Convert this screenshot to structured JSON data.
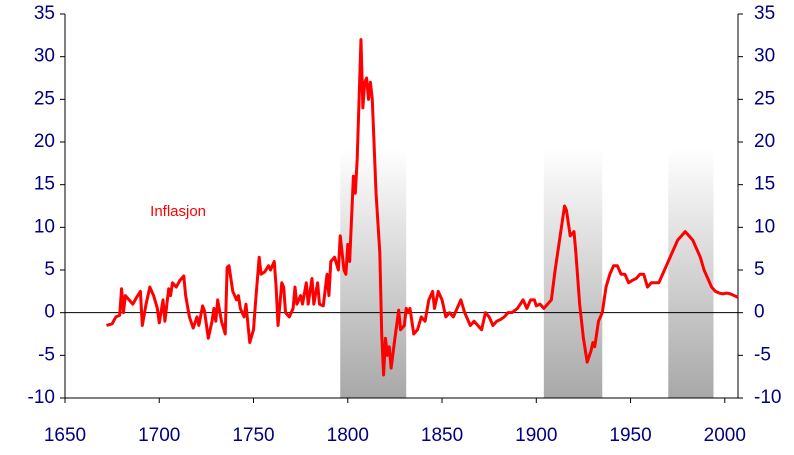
{
  "chart_data": {
    "type": "line",
    "xlim": [
      1650,
      2007
    ],
    "xticks": [
      1650,
      1700,
      1750,
      1800,
      1850,
      1900,
      1950,
      2000
    ],
    "ylim": [
      -10,
      35
    ],
    "yticks": [
      -10,
      -5,
      0,
      5,
      10,
      15,
      20,
      25,
      30,
      35
    ],
    "y2lim": [
      -10,
      35
    ],
    "y2ticks": [
      -10,
      -5,
      0,
      5,
      10,
      15,
      20,
      25,
      30,
      35
    ],
    "axis_color": "#000080",
    "shaded_periods": [
      {
        "start": 1796,
        "end": 1831
      },
      {
        "start": 1904,
        "end": 1935
      },
      {
        "start": 1970,
        "end": 1994
      }
    ],
    "annotation_position": {
      "x": 1710,
      "y": 11.8
    },
    "x": [
      1672,
      1675,
      1677,
      1679,
      1680,
      1681,
      1682,
      1684,
      1686,
      1688,
      1690,
      1691,
      1693,
      1695,
      1697,
      1699,
      1700,
      1702,
      1703,
      1705,
      1706,
      1707,
      1709,
      1711,
      1713,
      1714,
      1716,
      1718,
      1720,
      1721,
      1723,
      1724,
      1726,
      1728,
      1729,
      1730,
      1731,
      1733,
      1735,
      1736,
      1737,
      1739,
      1741,
      1742,
      1743,
      1745,
      1746,
      1748,
      1750,
      1751,
      1753,
      1754,
      1756,
      1758,
      1759,
      1761,
      1762,
      1763,
      1765,
      1766,
      1767,
      1769,
      1771,
      1772,
      1773,
      1775,
      1776,
      1778,
      1779,
      1781,
      1782,
      1784,
      1785,
      1787,
      1789,
      1790,
      1791,
      1793,
      1795,
      1796,
      1797,
      1798,
      1799,
      1800,
      1801,
      1803,
      1804,
      1805,
      1806,
      1807,
      1808,
      1809,
      1810,
      1811,
      1812,
      1813,
      1815,
      1817,
      1818,
      1819,
      1820,
      1821,
      1822,
      1823,
      1825,
      1827,
      1828,
      1830,
      1831,
      1832,
      1833,
      1835,
      1837,
      1839,
      1841,
      1843,
      1845,
      1846,
      1848,
      1850,
      1852,
      1854,
      1856,
      1858,
      1860,
      1862,
      1864,
      1865,
      1867,
      1869,
      1871,
      1873,
      1875,
      1877,
      1879,
      1881,
      1883,
      1885,
      1887,
      1890,
      1893,
      1895,
      1897,
      1899,
      1900,
      1902,
      1904,
      1906,
      1908,
      1910,
      1912,
      1914,
      1915,
      1916,
      1918,
      1920,
      1921,
      1923,
      1925,
      1927,
      1929,
      1930,
      1931,
      1933,
      1935,
      1937,
      1939,
      1941,
      1943,
      1945,
      1947,
      1949,
      1951,
      1953,
      1955,
      1957,
      1959,
      1961,
      1963,
      1965,
      1967,
      1969,
      1971,
      1973,
      1975,
      1977,
      1979,
      1981,
      1983,
      1985,
      1987,
      1989,
      1991,
      1993,
      1995,
      1997,
      1999,
      2001,
      2003,
      2005,
      2007
    ],
    "series": [
      {
        "name": "Inflasjon",
        "color": "#ff0000",
        "values": [
          -1.5,
          -1.3,
          -0.5,
          -0.3,
          2.8,
          0,
          2,
          1.5,
          1,
          1.8,
          2.5,
          -1.5,
          1,
          3,
          2,
          0.5,
          -1.2,
          1.5,
          -1,
          2.8,
          2,
          3.5,
          3,
          3.8,
          4.3,
          2,
          -0.5,
          -1.8,
          -0.5,
          -1.5,
          0.8,
          0.2,
          -3,
          -1,
          0.5,
          -1,
          1.5,
          -1,
          -2.5,
          5.3,
          5.5,
          2.5,
          1.5,
          2,
          0.5,
          -0.5,
          1,
          -3.5,
          -2,
          1,
          6.5,
          4.5,
          4.8,
          5.5,
          5,
          6,
          3,
          -1.5,
          3.5,
          3,
          0,
          -0.5,
          0.5,
          3,
          1,
          2,
          1,
          3.5,
          1,
          4,
          1,
          3.5,
          1,
          0.8,
          4.5,
          2,
          6,
          6.5,
          5,
          9,
          7,
          5,
          4.5,
          8,
          6,
          16,
          14,
          18,
          25,
          32,
          24,
          27,
          27.5,
          25,
          27,
          25,
          14,
          7,
          -2.5,
          -7.3,
          -3,
          -5,
          -4,
          -6.5,
          -3,
          0.3,
          -2,
          -1.5,
          0.5,
          0,
          0.5,
          -2.5,
          -2,
          -0.5,
          -1,
          1.5,
          2.5,
          0.5,
          2.5,
          1.5,
          -0.5,
          0,
          -0.5,
          0.5,
          1.5,
          0,
          -1,
          -1.5,
          -1,
          -1.5,
          -2,
          0,
          -0.5,
          -1.5,
          -1,
          -0.8,
          -0.5,
          0,
          0,
          0.5,
          1.5,
          0.5,
          1.5,
          1.5,
          0.8,
          1,
          0.5,
          1,
          1.5,
          5,
          8,
          11,
          12.5,
          12,
          9,
          9.5,
          7,
          1,
          -3,
          -5.8,
          -4.5,
          -3.5,
          -4,
          -1,
          0,
          3,
          4.5,
          5.5,
          5.5,
          4.5,
          4.5,
          3.5,
          3.8,
          4,
          4.5,
          4.5,
          3,
          3.5,
          3.5,
          3.5,
          4.5,
          5.5,
          6.5,
          7.5,
          8.5,
          9,
          9.5,
          9,
          8.5,
          7.5,
          6.5,
          5,
          4,
          3,
          2.5,
          2.3,
          2.2,
          2.3,
          2.2,
          2,
          1.8
        ]
      }
    ]
  }
}
